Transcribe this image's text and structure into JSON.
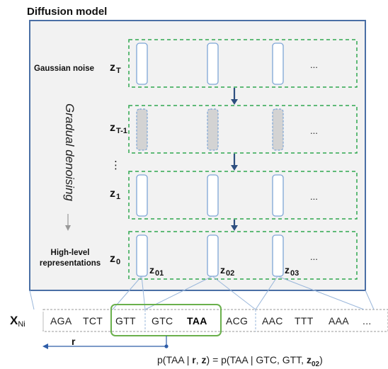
{
  "title": "Diffusion model",
  "left_labels": {
    "gaussian_noise": "Gaussian noise",
    "high_level_line1": "High-level",
    "high_level_line2": "representations",
    "vertical_ellipsis": "⋮",
    "gradual_denoising": "Gradual denoising"
  },
  "z_labels": {
    "zT": {
      "base": "z",
      "sub": "T"
    },
    "zT1": {
      "base": "z",
      "sub": "T-1"
    },
    "z1": {
      "base": "z",
      "sub": "1"
    },
    "z0": {
      "base": "z",
      "sub": "0"
    }
  },
  "row_ellipsis": "...",
  "token_labels": {
    "z01": {
      "base": "z",
      "sub": "01"
    },
    "z02": {
      "base": "z",
      "sub": "02"
    },
    "z03": {
      "base": "z",
      "sub": "03"
    }
  },
  "sequence": {
    "label_base": "X",
    "label_sub": "Ni",
    "codons": [
      "AGA",
      "TCT",
      "GTT",
      "GTC",
      "TAA",
      "ACG",
      "AAC",
      "TTT",
      "AAA"
    ],
    "bold_codon": "TAA",
    "ellipsis": "...",
    "r_label": "r"
  },
  "formula": {
    "part1": "p(TAA | ",
    "r": "r",
    "part2": ", ",
    "z": "z",
    "part3": ") = p(TAA | GTC, GTT, ",
    "z02": "z",
    "z02_sub": "02",
    "part4": ")"
  },
  "colors": {
    "frame": "#4a6fa5",
    "frame_fill": "#f2f2f2",
    "dashed_green": "#2fa84f",
    "arrow": "#2e4f80",
    "token_border": "#7ea6d6",
    "token_fill_noisy": "#d3d3d3",
    "highlight_green": "#6ab04c",
    "connector": "#9ab7db"
  }
}
